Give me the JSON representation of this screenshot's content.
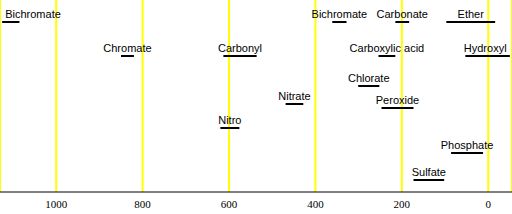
{
  "chart_data": {
    "type": "range",
    "xlim": [
      1130,
      -55
    ],
    "xticks": [
      1000,
      800,
      600,
      400,
      200,
      0
    ],
    "grid": true,
    "color": "#000000",
    "ranges": [
      {
        "label": "Bichromate",
        "low": 1085,
        "high": 1125
      },
      {
        "label": "Chromate",
        "low": 820,
        "high": 850
      },
      {
        "label": "Carbonyl",
        "low": 536,
        "high": 613
      },
      {
        "label": "Bichromate",
        "low": 328,
        "high": 361
      },
      {
        "label": "Carbonate",
        "low": 183,
        "high": 215
      },
      {
        "label": "Ether",
        "low": -16,
        "high": 97
      },
      {
        "label": "Carboxylic acid",
        "low": 215,
        "high": 254
      },
      {
        "label": "Hydroxyl",
        "low": -50,
        "high": 53
      },
      {
        "label": "Chlorate",
        "low": 252,
        "high": 301
      },
      {
        "label": "Nitrate",
        "low": 428,
        "high": 469
      },
      {
        "label": "Peroxide",
        "low": 173,
        "high": 247
      },
      {
        "label": "Nitro",
        "low": 576,
        "high": 620
      },
      {
        "label": "Phosphate",
        "low": 12,
        "high": 86
      },
      {
        "label": "Sulfate",
        "low": 102,
        "high": 173
      }
    ]
  }
}
